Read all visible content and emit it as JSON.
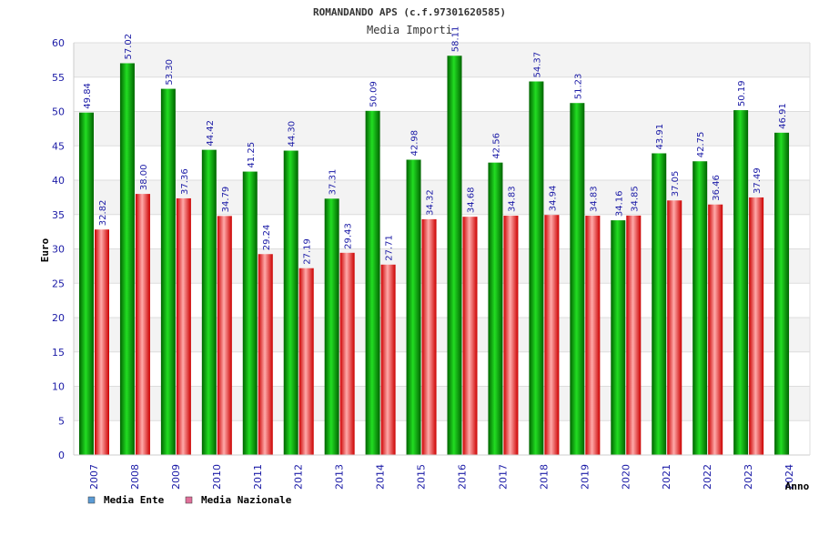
{
  "chart_data": {
    "type": "bar",
    "title": "ROMANDANDO APS (c.f.97301620585)",
    "subtitle": "Media Importi",
    "xlabel": "Anno",
    "ylabel": "Euro",
    "ylim": [
      0,
      60
    ],
    "ytick_step": 5,
    "yticks": [
      "0",
      "5",
      "10",
      "15",
      "20",
      "25",
      "30",
      "35",
      "40",
      "45",
      "50",
      "55",
      "60"
    ],
    "grid": true,
    "legend_position": "bottom-left",
    "categories": [
      "2007",
      "2008",
      "2009",
      "2010",
      "2011",
      "2012",
      "2013",
      "2014",
      "2015",
      "2016",
      "2017",
      "2018",
      "2019",
      "2020",
      "2021",
      "2022",
      "2023",
      "2024"
    ],
    "series": [
      {
        "name": "Media Ente",
        "color": "#00aa00",
        "legend_color": "#5b9bd5",
        "values": [
          49.84,
          57.02,
          53.3,
          44.42,
          41.25,
          44.3,
          37.31,
          50.09,
          42.98,
          58.11,
          42.56,
          54.37,
          51.23,
          34.16,
          43.91,
          42.75,
          50.19,
          46.91
        ],
        "labels": [
          "49.84",
          "57.02",
          "53.30",
          "44.42",
          "41.25",
          "44.30",
          "37.31",
          "50.09",
          "42.98",
          "58.11",
          "42.56",
          "54.37",
          "51.23",
          "34.16",
          "43.91",
          "42.75",
          "50.19",
          "46.91"
        ]
      },
      {
        "name": "Media Nazionale",
        "color": "#ee2222",
        "legend_color": "#e0709a",
        "values": [
          32.82,
          38.0,
          37.36,
          34.79,
          29.24,
          27.19,
          29.43,
          27.71,
          34.32,
          34.68,
          34.83,
          34.94,
          34.83,
          34.85,
          37.05,
          36.46,
          37.49,
          null
        ],
        "labels": [
          "32.82",
          "38.00",
          "37.36",
          "34.79",
          "29.24",
          "27.19",
          "29.43",
          "27.71",
          "34.32",
          "34.68",
          "34.83",
          "34.94",
          "34.83",
          "34.85",
          "37.05",
          "36.46",
          "37.49",
          ""
        ]
      }
    ]
  }
}
